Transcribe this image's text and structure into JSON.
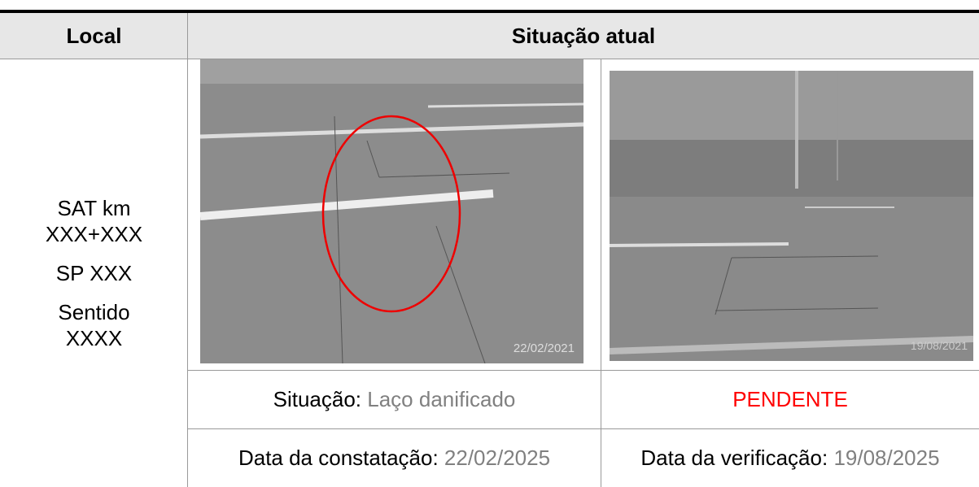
{
  "header": {
    "local": "Local",
    "situacao_atual": "Situação atual"
  },
  "local": [
    "SAT km XXX+XXX",
    "SP XXX",
    "Sentido XXXX"
  ],
  "photos": [
    {
      "date_stamp": "22/02/2021"
    },
    {
      "date_stamp": "19/08/2021"
    }
  ],
  "status": {
    "label": "Situação:",
    "value": "Laço danificado",
    "result": "PENDENTE"
  },
  "dates": [
    {
      "label": "Data da constatação:",
      "value": "22/02/2025"
    },
    {
      "label": "Data da verificação:",
      "value": "19/08/2025"
    }
  ]
}
